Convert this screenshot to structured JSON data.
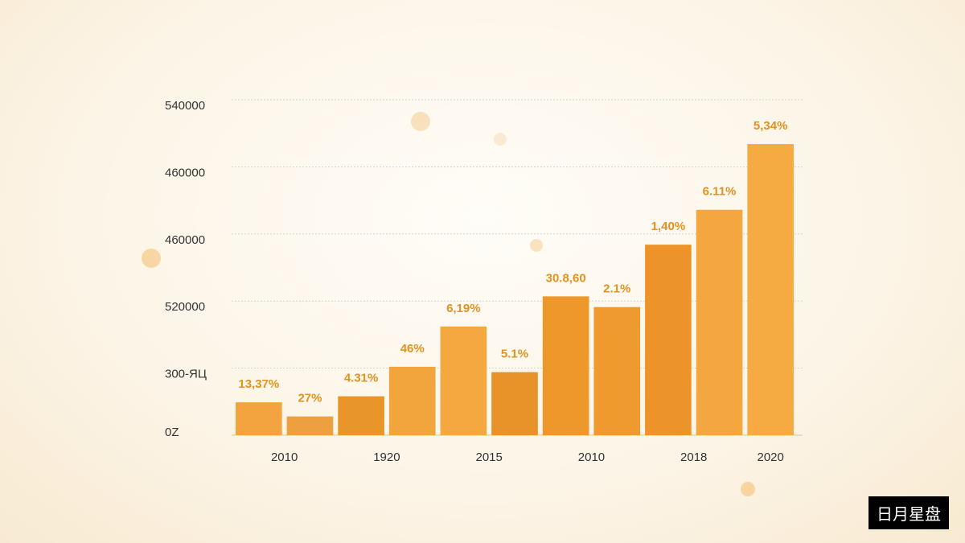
{
  "chart_data": {
    "type": "bar",
    "categories": [
      "2010",
      null,
      "1920",
      null,
      "2015",
      null,
      "2010",
      null,
      "2018",
      null,
      "2020"
    ],
    "values": [
      0.49,
      0.28,
      0.58,
      1.02,
      1.62,
      0.94,
      2.07,
      1.91,
      2.84,
      3.36,
      4.34
    ],
    "value_labels": [
      "13,37%",
      "27%",
      "4.31%",
      "46%",
      "6,19%",
      "5.1%",
      "30.8,60",
      "2.1%",
      "1,40%",
      "6.11%",
      "5,34%"
    ],
    "colors": [
      "#f3a43e",
      "#eda040",
      "#e8962a",
      "#f2a43d",
      "#f5a840",
      "#e8922a",
      "#ee982c",
      "#ef9a2e",
      "#ec9429",
      "#f4a640",
      "#f6ab42"
    ],
    "ylim": [
      0,
      5
    ],
    "yticks": [
      {
        "value": 0,
        "label": "0Z"
      },
      {
        "value": 1,
        "label": "300-ЯЦ"
      },
      {
        "value": 2,
        "label": "520000"
      },
      {
        "value": 3,
        "label": "460000"
      },
      {
        "value": 4,
        "label": "460000"
      },
      {
        "value": 5,
        "label": "540000"
      }
    ],
    "grid": true
  },
  "watermark": "日月星盘"
}
